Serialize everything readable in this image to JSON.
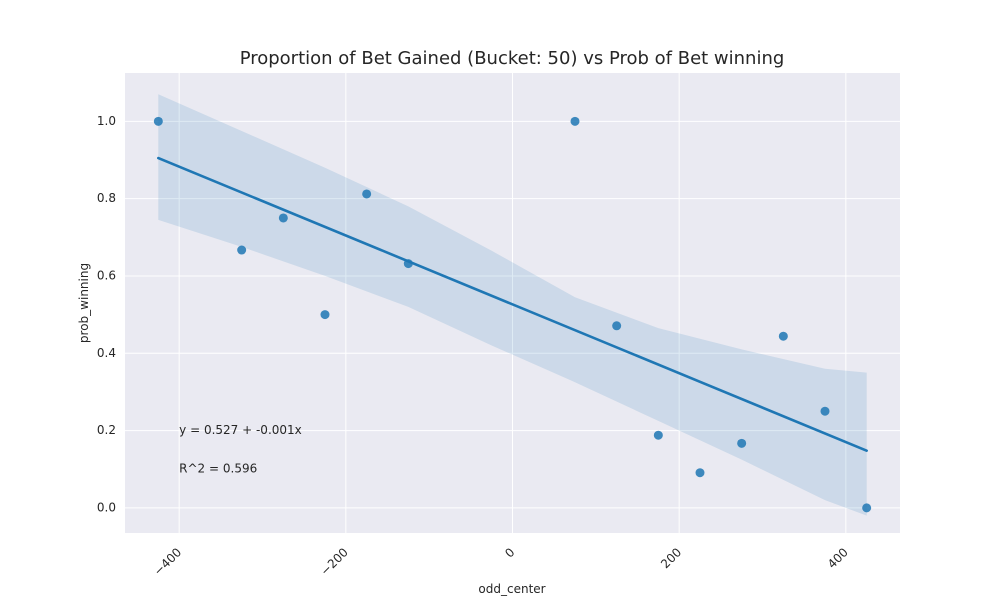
{
  "chart_data": {
    "type": "scatter",
    "title": "Proportion of Bet Gained (Bucket: 50) vs Prob of Bet winning",
    "xlabel": "odd_center",
    "ylabel": "prob_winning",
    "xlim": [
      -465,
      465
    ],
    "ylim": [
      -0.065,
      1.125
    ],
    "x_ticks": [
      -400,
      -200,
      0,
      200,
      400
    ],
    "x_tick_labels": [
      "−400",
      "−200",
      "0",
      "200",
      "400"
    ],
    "y_ticks": [
      0.0,
      0.2,
      0.4,
      0.6,
      0.8,
      1.0
    ],
    "y_tick_labels": [
      "0.0",
      "0.2",
      "0.4",
      "0.6",
      "0.8",
      "1.0"
    ],
    "grid": true,
    "points": [
      {
        "x": -425,
        "y": 1.0
      },
      {
        "x": -325,
        "y": 0.667
      },
      {
        "x": -275,
        "y": 0.75
      },
      {
        "x": -225,
        "y": 0.5
      },
      {
        "x": -175,
        "y": 0.812
      },
      {
        "x": -125,
        "y": 0.632
      },
      {
        "x": 75,
        "y": 1.0
      },
      {
        "x": 125,
        "y": 0.471
      },
      {
        "x": 175,
        "y": 0.188
      },
      {
        "x": 225,
        "y": 0.091
      },
      {
        "x": 275,
        "y": 0.167
      },
      {
        "x": 325,
        "y": 0.444
      },
      {
        "x": 375,
        "y": 0.25
      },
      {
        "x": 425,
        "y": 0.0
      }
    ],
    "regression": {
      "x_start": -425,
      "y_start": 0.905,
      "x_end": 425,
      "y_end": 0.148,
      "ci_upper": [
        {
          "x": -425,
          "y": 1.07
        },
        {
          "x": -325,
          "y": 0.975
        },
        {
          "x": -225,
          "y": 0.88
        },
        {
          "x": -125,
          "y": 0.78
        },
        {
          "x": -25,
          "y": 0.665
        },
        {
          "x": 75,
          "y": 0.545
        },
        {
          "x": 175,
          "y": 0.465
        },
        {
          "x": 275,
          "y": 0.41
        },
        {
          "x": 375,
          "y": 0.36
        },
        {
          "x": 425,
          "y": 0.35
        }
      ],
      "ci_lower": [
        {
          "x": 425,
          "y": -0.02
        },
        {
          "x": 375,
          "y": 0.02
        },
        {
          "x": 275,
          "y": 0.125
        },
        {
          "x": 175,
          "y": 0.225
        },
        {
          "x": 75,
          "y": 0.325
        },
        {
          "x": -25,
          "y": 0.42
        },
        {
          "x": -125,
          "y": 0.52
        },
        {
          "x": -225,
          "y": 0.6
        },
        {
          "x": -325,
          "y": 0.675
        },
        {
          "x": -425,
          "y": 0.745
        }
      ]
    },
    "annotations": [
      {
        "text": "y = 0.527 + -0.001x",
        "x": -400,
        "y": 0.2
      },
      {
        "text": "R^2 = 0.596",
        "x": -400,
        "y": 0.1
      }
    ],
    "colors": {
      "background": "#eaeaf2",
      "grid": "#ffffff",
      "point": "#1f77b4",
      "line": "#1f77b4",
      "band": "#1f77b4"
    }
  }
}
